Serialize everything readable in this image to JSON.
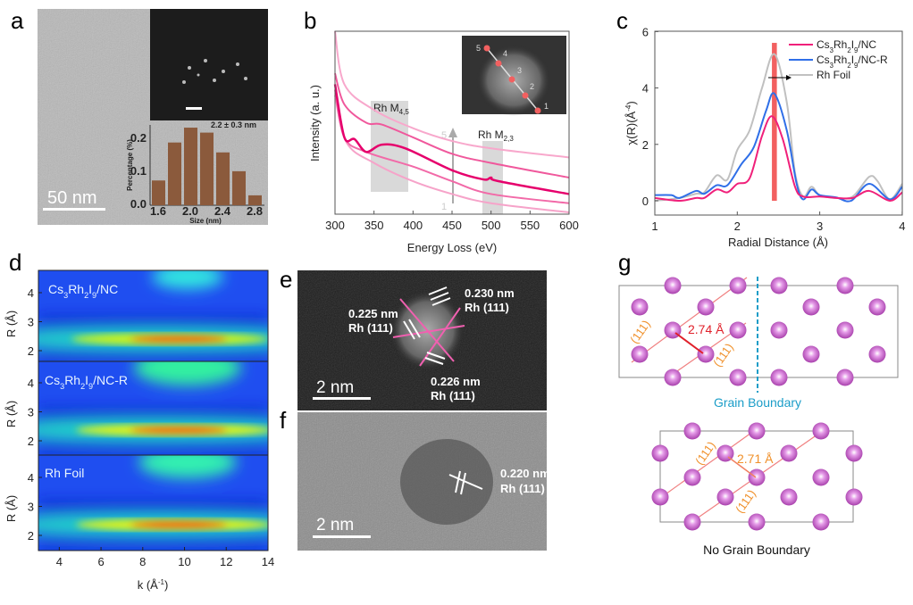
{
  "panels": {
    "a": "a",
    "b": "b",
    "c": "c",
    "d": "d",
    "e": "e",
    "f": "f",
    "g": "g"
  },
  "panel_a": {
    "scale_bar": "50 nm",
    "histogram_title": "2.2 ± 0.3 nm",
    "xlabel": "Size (nm)",
    "ylabel": "Percentage (%)",
    "xticks": [
      "1.6",
      "2.0",
      "2.4",
      "2.8"
    ],
    "yticks": [
      "0.0",
      "0.1",
      "0.2"
    ]
  },
  "panel_b": {
    "xlabel": "Energy Loss (eV)",
    "ylabel": "Intensity (a. u.)",
    "xticks": [
      "300",
      "350",
      "400",
      "450",
      "500",
      "550",
      "600"
    ],
    "region1": {
      "base": "Rh M",
      "sub": "4,5"
    },
    "region2": {
      "base": "Rh M",
      "sub": "2,3"
    },
    "arrow_start": "1",
    "arrow_end": "5",
    "inset_points": [
      "1",
      "2",
      "3",
      "4",
      "5"
    ]
  },
  "panel_c": {
    "xlabel": "Radial Distance (Å)",
    "ylabel": {
      "base": "χ(R)(Å",
      "sup": "-4",
      "end": ")"
    },
    "xticks": [
      "1",
      "2",
      "3",
      "4"
    ],
    "yticks": [
      "0",
      "2",
      "4",
      "6"
    ],
    "legend": [
      "Cs3Rh2I9/NC",
      "Cs3Rh2I9/NC-R",
      "Rh Foil"
    ]
  },
  "panel_d": {
    "labels": [
      "Cs3Rh2I9/NC",
      "Cs3Rh2I9/NC-R",
      "Rh Foil"
    ],
    "ylabel": "R (Å)",
    "xlabel": {
      "base": "k (Å",
      "sup": "-1",
      "end": ")"
    },
    "xticks": [
      "4",
      "6",
      "8",
      "10",
      "12",
      "14"
    ],
    "yticks": [
      "2",
      "3",
      "4"
    ]
  },
  "panel_e": {
    "scale_bar": "2 nm",
    "annotations": [
      {
        "d": "0.225 nm",
        "plane": "Rh (111)"
      },
      {
        "d": "0.230 nm",
        "plane": "Rh (111)"
      },
      {
        "d": "0.226 nm",
        "plane": "Rh (111)"
      }
    ]
  },
  "panel_f": {
    "scale_bar": "2 nm",
    "annotation": {
      "d": "0.220 nm",
      "plane": "Rh (111)"
    }
  },
  "panel_g": {
    "top_distance": "2.74 Å",
    "bottom_distance": "2.71 Å",
    "plane": "(111)",
    "top_caption": "Grain Boundary",
    "bottom_caption": "No Grain Boundary"
  },
  "colors": {
    "atom": "#c45ac8",
    "grain_boundary": "#1b9dc8",
    "plane_label": "#f0902a",
    "distance_top": "#e0202a",
    "bar": "#8b5a3c",
    "red_band": "#f26060"
  },
  "chart_data": [
    {
      "panel": "a",
      "type": "bar",
      "title": "2.2 ± 0.3 nm",
      "xlabel": "Size (nm)",
      "ylabel": "Percentage (%)",
      "categories": [
        1.6,
        1.8,
        2.0,
        2.2,
        2.4,
        2.6,
        2.8
      ],
      "values": [
        0.075,
        0.19,
        0.235,
        0.22,
        0.16,
        0.103,
        0.03
      ],
      "ylim": [
        0,
        0.25
      ]
    },
    {
      "panel": "b",
      "type": "line",
      "xlabel": "Energy Loss (eV)",
      "ylabel": "Intensity (a. u.)",
      "xlim": [
        300,
        600
      ],
      "series": [
        {
          "name": "1",
          "color": "#f6a3c9",
          "points": [
            [
              300,
              0.65
            ],
            [
              315,
              0.39
            ],
            [
              350,
              0.28
            ],
            [
              400,
              0.18
            ],
            [
              450,
              0.11
            ],
            [
              500,
              0.06
            ],
            [
              600,
              0.01
            ]
          ]
        },
        {
          "name": "2",
          "color": "#f26aa8",
          "points": [
            [
              300,
              0.68
            ],
            [
              312,
              0.42
            ],
            [
              340,
              0.34
            ],
            [
              400,
              0.26
            ],
            [
              450,
              0.18
            ],
            [
              500,
              0.11
            ],
            [
              600,
              0.06
            ]
          ]
        },
        {
          "name": "3",
          "color": "#e6006c",
          "points": [
            [
              300,
              0.71
            ],
            [
              312,
              0.42
            ],
            [
              325,
              0.41
            ],
            [
              340,
              0.34
            ],
            [
              360,
              0.38
            ],
            [
              390,
              0.36
            ],
            [
              450,
              0.24
            ],
            [
              490,
              0.19
            ],
            [
              500,
              0.2
            ],
            [
              510,
              0.18
            ],
            [
              600,
              0.11
            ]
          ]
        },
        {
          "name": "4",
          "color": "#f0589c",
          "points": [
            [
              300,
              0.77
            ],
            [
              312,
              0.6
            ],
            [
              340,
              0.5
            ],
            [
              360,
              0.49
            ],
            [
              400,
              0.42
            ],
            [
              450,
              0.33
            ],
            [
              500,
              0.28
            ],
            [
              600,
              0.2
            ]
          ]
        },
        {
          "name": "5",
          "color": "#f8a8cc",
          "points": [
            [
              300,
              1.0
            ],
            [
              312,
              0.71
            ],
            [
              350,
              0.57
            ],
            [
              400,
              0.47
            ],
            [
              450,
              0.4
            ],
            [
              500,
              0.36
            ],
            [
              600,
              0.31
            ]
          ]
        }
      ],
      "regions": [
        {
          "label": "Rh M4,5",
          "x": [
            347,
            393
          ]
        },
        {
          "label": "Rh M2,3",
          "x": [
            489,
            515
          ]
        }
      ]
    },
    {
      "panel": "c",
      "type": "line",
      "xlabel": "Radial Distance (Å)",
      "ylabel": "χ(R)(Å-4)",
      "xlim": [
        1,
        4
      ],
      "ylim": [
        -0.5,
        6
      ],
      "legend": "top-right",
      "highlight_band": [
        2.42,
        2.48
      ],
      "series": [
        {
          "name": "Cs3Rh2I9/NC",
          "color": "#f0207a",
          "points": [
            [
              1,
              0.1
            ],
            [
              1.3,
              0
            ],
            [
              1.5,
              0.1
            ],
            [
              1.6,
              0.1
            ],
            [
              1.75,
              0.4
            ],
            [
              1.88,
              0.3
            ],
            [
              2.0,
              0.6
            ],
            [
              2.15,
              0.8
            ],
            [
              2.3,
              2.3
            ],
            [
              2.42,
              3.0
            ],
            [
              2.55,
              2.2
            ],
            [
              2.7,
              0.5
            ],
            [
              2.8,
              0.15
            ],
            [
              3.0,
              0.15
            ],
            [
              3.2,
              0.1
            ],
            [
              3.4,
              0.1
            ],
            [
              3.6,
              0.35
            ],
            [
              3.85,
              0.0
            ],
            [
              4,
              0.3
            ]
          ]
        },
        {
          "name": "Cs3Rh2I9/NC-R",
          "color": "#2f6fe8",
          "points": [
            [
              1,
              0.2
            ],
            [
              1.2,
              0.2
            ],
            [
              1.3,
              0.1
            ],
            [
              1.5,
              0.35
            ],
            [
              1.6,
              0.25
            ],
            [
              1.75,
              0.55
            ],
            [
              1.88,
              0.55
            ],
            [
              2.05,
              1.3
            ],
            [
              2.2,
              1.9
            ],
            [
              2.35,
              3.2
            ],
            [
              2.45,
              3.8
            ],
            [
              2.6,
              2.5
            ],
            [
              2.72,
              0.6
            ],
            [
              2.8,
              0.05
            ],
            [
              2.9,
              0.4
            ],
            [
              3.0,
              0.2
            ],
            [
              3.2,
              0.12
            ],
            [
              3.38,
              0.0
            ],
            [
              3.6,
              0.6
            ],
            [
              3.85,
              0.05
            ],
            [
              4,
              0.5
            ]
          ]
        },
        {
          "name": "Rh Foil",
          "color": "#c0c0c0",
          "points": [
            [
              1,
              0
            ],
            [
              1.3,
              0.1
            ],
            [
              1.5,
              0.25
            ],
            [
              1.6,
              0.3
            ],
            [
              1.75,
              0.9
            ],
            [
              1.88,
              0.75
            ],
            [
              2.0,
              1.8
            ],
            [
              2.15,
              2.5
            ],
            [
              2.3,
              4.0
            ],
            [
              2.45,
              5.2
            ],
            [
              2.6,
              3.5
            ],
            [
              2.7,
              1.0
            ],
            [
              2.8,
              0.15
            ],
            [
              2.9,
              0.5
            ],
            [
              3.0,
              0.2
            ],
            [
              3.2,
              0.1
            ],
            [
              3.4,
              0.15
            ],
            [
              3.6,
              0.85
            ],
            [
              3.7,
              0.7
            ],
            [
              3.85,
              0.05
            ],
            [
              4,
              0.6
            ]
          ]
        }
      ]
    },
    {
      "panel": "d",
      "type": "heatmap",
      "xlabel": "k (Å-1)",
      "ylabel": "R (Å)",
      "xlim": [
        3,
        14
      ],
      "ylim": [
        1.6,
        4.7
      ],
      "maps": [
        {
          "name": "Cs3Rh2I9/NC",
          "max_at": {
            "k": 9.5,
            "R": 2.4
          }
        },
        {
          "name": "Cs3Rh2I9/NC-R",
          "max_at": {
            "k": 9.8,
            "R": 2.45
          }
        },
        {
          "name": "Rh Foil",
          "max_at": {
            "k": 9.8,
            "R": 2.45
          }
        }
      ],
      "colormap": "jet"
    }
  ]
}
